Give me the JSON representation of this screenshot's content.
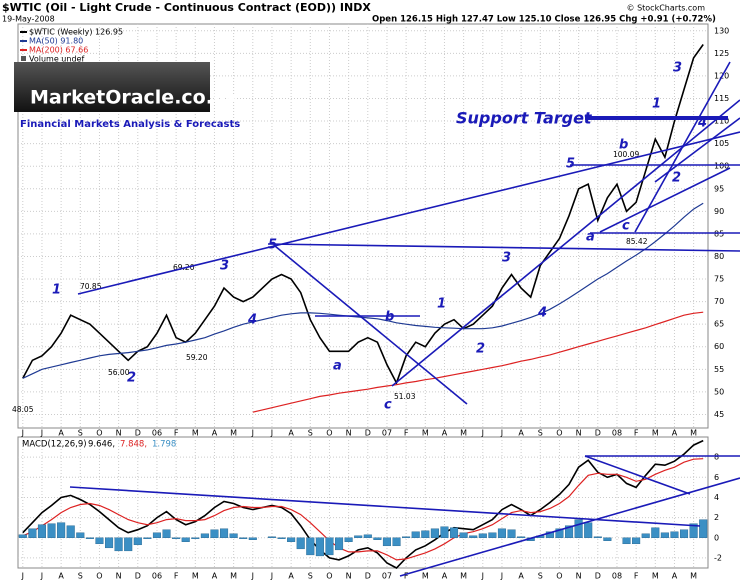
{
  "branding": {
    "site": "MarketOracle.co.uk",
    "tagline": "Financial Markets Analysis & Forecasts"
  },
  "chart_data": [
    {
      "type": "line",
      "title": "$WTIC (Oil - Light Crude - Continuous Contract (EOD)) INDX",
      "subtitle": "19-May-2008",
      "quote": "Open 126.15 High 127.47 Low 125.10 Close 126.95 Chg +0.91 (+0.72%)",
      "source": "© StockCharts.com",
      "volume_note": "Volume undef",
      "categories": [
        "J",
        null,
        "J",
        null,
        "A",
        null,
        "S",
        null,
        "O",
        null,
        "N",
        null,
        "D",
        null,
        "06",
        null,
        "F",
        null,
        "M",
        null,
        "A",
        null,
        "M",
        null,
        "J",
        null,
        "J",
        null,
        "A",
        null,
        "S",
        null,
        "O",
        null,
        "N",
        null,
        "D",
        null,
        "07",
        null,
        "F",
        null,
        "M",
        null,
        "A",
        null,
        "M",
        null,
        "J",
        null,
        "J",
        null,
        "A",
        null,
        "S",
        null,
        "O",
        null,
        "N",
        null,
        "D",
        null,
        "08",
        null,
        "F",
        null,
        "M",
        null,
        "A",
        null,
        "M",
        null
      ],
      "series": [
        {
          "name": "$WTIC (Weekly) 126.95",
          "color": "#000000",
          "values": [
            53,
            57,
            58,
            60,
            63,
            67,
            66,
            65,
            63,
            61,
            59,
            57,
            59,
            60,
            63,
            67,
            62,
            61,
            63,
            66,
            69,
            73,
            71,
            70,
            71,
            73,
            75,
            76,
            75,
            72,
            66,
            62,
            59,
            59,
            59,
            61,
            62,
            61,
            56,
            52,
            58,
            61,
            60,
            63,
            65,
            66,
            64,
            65,
            67,
            69,
            73,
            76,
            73,
            71,
            78,
            81,
            84,
            89,
            95,
            96,
            88,
            93,
            96,
            90,
            92,
            99,
            106,
            102,
            110,
            117,
            124,
            126.95
          ]
        },
        {
          "name": "MA(50) 91.80",
          "color": "#1f3a93",
          "values": [
            53,
            54,
            55,
            55.5,
            56,
            56.5,
            57,
            57.5,
            58,
            58.3,
            58.5,
            58.7,
            59,
            59.3,
            59.8,
            60.3,
            60.6,
            61,
            61.5,
            62,
            62.8,
            63.5,
            64.3,
            65,
            65.5,
            66,
            66.5,
            67,
            67.3,
            67.5,
            67.5,
            67.4,
            67.2,
            67,
            66.8,
            66.6,
            66.4,
            66.2,
            65.8,
            65.3,
            65,
            64.7,
            64.5,
            64.3,
            64.2,
            64.1,
            64,
            64,
            64,
            64.2,
            64.6,
            65.2,
            65.8,
            66.5,
            67.3,
            68.3,
            69.5,
            70.8,
            72.2,
            73.6,
            75,
            76.2,
            77.6,
            79,
            80.3,
            81.7,
            83.3,
            85,
            86.8,
            88.7,
            90.5,
            91.8
          ]
        },
        {
          "name": "MA(200) 67.66",
          "color": "#dd2222",
          "values": [
            null,
            null,
            null,
            null,
            null,
            null,
            null,
            null,
            null,
            null,
            null,
            null,
            null,
            null,
            null,
            null,
            null,
            null,
            null,
            null,
            null,
            null,
            null,
            null,
            45.5,
            46,
            46.5,
            47,
            47.5,
            48,
            48.5,
            49,
            49.3,
            49.7,
            50,
            50.3,
            50.6,
            51,
            51.3,
            51.6,
            52,
            52.3,
            52.7,
            53,
            53.4,
            53.8,
            54.2,
            54.6,
            55,
            55.4,
            55.8,
            56.3,
            56.8,
            57.2,
            57.7,
            58.2,
            58.8,
            59.4,
            60,
            60.6,
            61.2,
            61.8,
            62.4,
            63,
            63.6,
            64.2,
            64.9,
            65.6,
            66.3,
            67,
            67.4,
            67.66
          ]
        }
      ],
      "ylim": [
        42,
        131.5
      ],
      "yticks": [
        45,
        50,
        55,
        60,
        65,
        70,
        75,
        80,
        85,
        90,
        95,
        100,
        105,
        110,
        115,
        120,
        125,
        130
      ],
      "grid": true,
      "annotations": [
        "1",
        "70.85",
        "2",
        "56.00",
        "3",
        "69.20",
        "4",
        "59.20",
        "5",
        "a",
        "b",
        "c",
        "51.03",
        "48.05",
        "1",
        "2",
        "3",
        "4",
        "5",
        "a",
        "b",
        "100.09",
        "c",
        "85.42",
        "1",
        "2",
        "3",
        "4",
        "Support Target"
      ]
    },
    {
      "type": "line",
      "title": "MACD(12,26,9)",
      "categories": [
        "J",
        null,
        "J",
        null,
        "A",
        null,
        "S",
        null,
        "O",
        null,
        "N",
        null,
        "D",
        null,
        "06",
        null,
        "F",
        null,
        "M",
        null,
        "A",
        null,
        "M",
        null,
        "J",
        null,
        "J",
        null,
        "A",
        null,
        "S",
        null,
        "O",
        null,
        "N",
        null,
        "D",
        null,
        "07",
        null,
        "F",
        null,
        "M",
        null,
        "A",
        null,
        "M",
        null,
        "J",
        null,
        "J",
        null,
        "A",
        null,
        "S",
        null,
        "O",
        null,
        "N",
        null,
        "D",
        null,
        "08",
        null,
        "F",
        null,
        "M",
        null,
        "A",
        null,
        "M",
        null
      ],
      "series": [
        {
          "name": "9.646,",
          "color": "#000000",
          "values": [
            0.5,
            1.5,
            2.5,
            3.2,
            4,
            4.2,
            3.8,
            3.3,
            2.6,
            1.8,
            1,
            0.5,
            0.8,
            1.2,
            2,
            2.6,
            1.8,
            1.3,
            1.6,
            2.2,
            3,
            3.6,
            3.4,
            3,
            2.8,
            3,
            3.2,
            3,
            2.4,
            1.2,
            -0.2,
            -1.2,
            -2,
            -2.2,
            -1.8,
            -1.2,
            -1,
            -1.5,
            -2.5,
            -3,
            -2,
            -1.2,
            -0.8,
            -0.2,
            0.5,
            1,
            0.9,
            0.8,
            1.3,
            1.8,
            2.8,
            3.3,
            2.8,
            2.2,
            2.8,
            3.5,
            4.3,
            5.3,
            7,
            7.7,
            6.5,
            6,
            6.3,
            5.4,
            5,
            6.2,
            7.3,
            7.2,
            7.6,
            8.3,
            9.2,
            9.646
          ]
        },
        {
          "name": "7.848,",
          "color": "#dd2222",
          "values": [
            0.2,
            0.6,
            1.2,
            1.8,
            2.5,
            3,
            3.3,
            3.4,
            3.2,
            2.8,
            2.3,
            1.8,
            1.5,
            1.3,
            1.5,
            1.8,
            1.9,
            1.7,
            1.7,
            1.8,
            2.2,
            2.7,
            3,
            3.1,
            3,
            3,
            3.1,
            3.1,
            2.8,
            2.3,
            1.5,
            0.6,
            -0.3,
            -1,
            -1.4,
            -1.4,
            -1.3,
            -1.3,
            -1.7,
            -2.2,
            -2.1,
            -1.8,
            -1.5,
            -1.1,
            -0.6,
            0,
            0.4,
            0.6,
            0.9,
            1.3,
            1.9,
            2.5,
            2.7,
            2.5,
            2.6,
            2.9,
            3.4,
            4.1,
            5.2,
            6.2,
            6.4,
            6.3,
            6.3,
            6,
            5.6,
            5.8,
            6.3,
            6.7,
            7,
            7.5,
            7.8,
            7.848
          ]
        },
        {
          "name": "1.798",
          "type": "bar",
          "color": "#3b8fc4",
          "values": [
            0.3,
            0.9,
            1.3,
            1.4,
            1.5,
            1.2,
            0.5,
            -0.1,
            -0.6,
            -1,
            -1.3,
            -1.3,
            -0.7,
            -0.1,
            0.5,
            0.8,
            -0.1,
            -0.4,
            -0.1,
            0.4,
            0.8,
            0.9,
            0.4,
            -0.1,
            -0.2,
            0,
            0.1,
            -0.1,
            -0.4,
            -1.1,
            -1.7,
            -1.8,
            -1.7,
            -1.2,
            -0.4,
            0.2,
            0.3,
            -0.2,
            -0.8,
            -0.8,
            0.1,
            0.6,
            0.7,
            0.9,
            1.1,
            1,
            0.5,
            0.2,
            0.4,
            0.5,
            0.9,
            0.8,
            0.1,
            -0.3,
            0.2,
            0.6,
            0.9,
            1.2,
            1.8,
            1.5,
            0.1,
            -0.3,
            0,
            -0.6,
            -0.6,
            0.4,
            1,
            0.5,
            0.6,
            0.8,
            1.4,
            1.798
          ]
        }
      ],
      "ylim": [
        -3,
        10
      ],
      "yticks": [
        -2,
        0,
        2,
        4,
        6,
        8
      ],
      "grid": true
    }
  ]
}
